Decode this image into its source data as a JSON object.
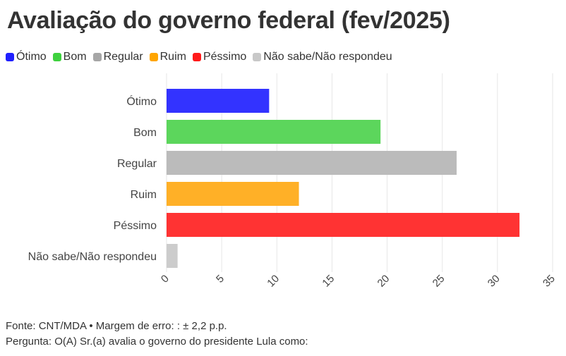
{
  "title": "Avaliação do governo federal (fev/2025)",
  "legend": [
    {
      "label": "Ótimo",
      "color": "#1f1fff"
    },
    {
      "label": "Bom",
      "color": "#3ed13e"
    },
    {
      "label": "Regular",
      "color": "#a6a6a6"
    },
    {
      "label": "Ruim",
      "color": "#ffa500"
    },
    {
      "label": "Péssimo",
      "color": "#ff1a1a"
    },
    {
      "label": "Não sabe/Não respondeu",
      "color": "#c8c8c8"
    }
  ],
  "footer": {
    "source": "Fonte: CNT/MDA • Margem de erro: : ± 2,2 p.p.",
    "question": "Pergunta: O(A) Sr.(a) avalia o governo do presidente Lula como:"
  },
  "chart_data": {
    "type": "bar",
    "orientation": "horizontal",
    "categories": [
      "Ótimo",
      "Bom",
      "Regular",
      "Ruim",
      "Péssimo",
      "Não sabe/Não respondeu"
    ],
    "values": [
      9.3,
      19.4,
      26.3,
      12.0,
      32.0,
      1.0
    ],
    "colors": [
      "#3333ff",
      "#5cd65c",
      "#bbbbbb",
      "#ffb027",
      "#ff3333",
      "#cccccc"
    ],
    "xlim": [
      0,
      35
    ],
    "xticks": [
      0,
      5,
      10,
      15,
      20,
      25,
      30,
      35
    ],
    "grid": true
  }
}
